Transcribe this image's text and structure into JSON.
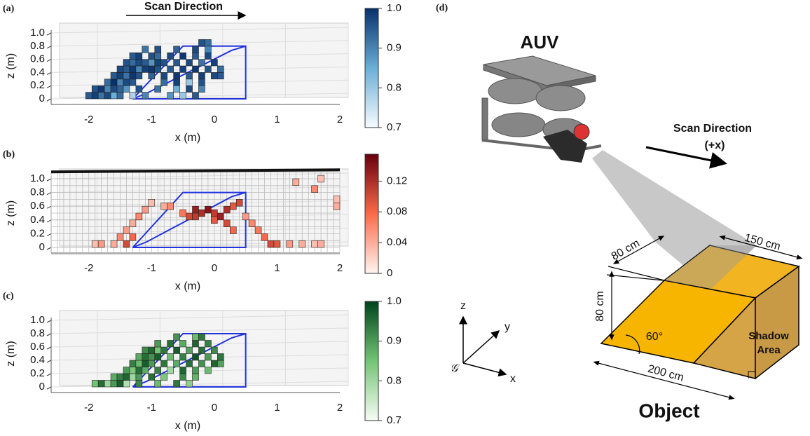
{
  "chart_data": [
    {
      "type": "voxel",
      "label": "(a)",
      "xlabel": "x (m)",
      "ylabel": "z (m)",
      "annotation": "Scan Direction",
      "xlim": [
        -2.6,
        2
      ],
      "xticks": [
        -2,
        -1,
        0,
        1,
        2
      ],
      "ylim": [
        0,
        1
      ],
      "yticks": [
        0,
        0.2,
        0.4,
        0.6,
        0.8,
        {
          "value": 1,
          "label": "1.0"
        }
      ],
      "colormap": [
        "#f7fbff",
        "#6baed6",
        "#08306b"
      ],
      "colorbar_lim": [
        0.7,
        1
      ],
      "colorbar_ticks": [
        0.7,
        0.8,
        0.9,
        {
          "value": 1,
          "label": "1.0"
        }
      ],
      "voxels": [
        [
          -2,
          0.05,
          0.95
        ],
        [
          -1.9,
          0.05,
          0.98
        ],
        [
          -1.8,
          0.05,
          0.92
        ],
        [
          -1.7,
          0.05,
          0.97
        ],
        [
          -1.6,
          0.05,
          0.85
        ],
        [
          -1.5,
          0.05,
          0.93
        ],
        [
          -1.3,
          0.05,
          0.78
        ],
        [
          -1.1,
          0.05,
          0.9
        ],
        [
          -0.7,
          0.05,
          0.88
        ],
        [
          -0.5,
          0.05,
          0.8
        ],
        [
          -0.3,
          0.05,
          0.95
        ],
        [
          -1.9,
          0.15,
          0.96
        ],
        [
          -1.8,
          0.15,
          0.99
        ],
        [
          -1.7,
          0.15,
          0.9
        ],
        [
          -1.6,
          0.15,
          0.97
        ],
        [
          -1.5,
          0.15,
          0.94
        ],
        [
          -1.4,
          0.15,
          0.88
        ],
        [
          -1.2,
          0.15,
          0.96
        ],
        [
          -0.9,
          0.15,
          0.92
        ],
        [
          -0.6,
          0.15,
          0.85
        ],
        [
          -0.4,
          0.15,
          0.97
        ],
        [
          -0.2,
          0.15,
          0.9
        ],
        [
          -1.7,
          0.25,
          0.93
        ],
        [
          -1.6,
          0.25,
          1
        ],
        [
          -1.5,
          0.25,
          0.9
        ],
        [
          -1.4,
          0.25,
          0.97
        ],
        [
          -1.3,
          0.25,
          0.95
        ],
        [
          -0.8,
          0.25,
          0.93
        ],
        [
          -0.6,
          0.25,
          0.98
        ],
        [
          -0.4,
          0.25,
          0.8
        ],
        [
          -0.2,
          0.25,
          0.96
        ],
        [
          -1.6,
          0.35,
          0.95
        ],
        [
          -1.5,
          0.35,
          0.98
        ],
        [
          -1.4,
          0.35,
          0.92
        ],
        [
          -1.3,
          0.35,
          0.99
        ],
        [
          -1.2,
          0.35,
          0.96
        ],
        [
          -1,
          0.35,
          0.94
        ],
        [
          -0.8,
          0.35,
          0.97
        ],
        [
          -0.6,
          0.35,
          0.99
        ],
        [
          -0.4,
          0.35,
          0.95
        ],
        [
          -0.2,
          0.35,
          0.98
        ],
        [
          0,
          0.35,
          0.97
        ],
        [
          0.1,
          0.35,
          0.95
        ],
        [
          -1.5,
          0.45,
          0.97
        ],
        [
          -1.4,
          0.45,
          0.95
        ],
        [
          -1.3,
          0.45,
          0.99
        ],
        [
          -1.2,
          0.45,
          0.9
        ],
        [
          -1.1,
          0.45,
          0.98
        ],
        [
          -1,
          0.45,
          0.99
        ],
        [
          -0.9,
          0.45,
          0.96
        ],
        [
          -0.7,
          0.45,
          0.95
        ],
        [
          -0.5,
          0.45,
          0.98
        ],
        [
          -0.3,
          0.45,
          0.99
        ],
        [
          -0.1,
          0.45,
          0.96
        ],
        [
          0.1,
          0.45,
          0.93
        ],
        [
          -1.4,
          0.55,
          0.96
        ],
        [
          -1.3,
          0.55,
          0.93
        ],
        [
          -1.2,
          0.55,
          0.97
        ],
        [
          -1.1,
          0.55,
          0.95
        ],
        [
          -1,
          0.55,
          0.88
        ],
        [
          -0.9,
          0.55,
          0.98
        ],
        [
          -0.8,
          0.55,
          0.96
        ],
        [
          -0.6,
          0.55,
          0.95
        ],
        [
          -0.4,
          0.55,
          0.97
        ],
        [
          -0.2,
          0.55,
          0.92
        ],
        [
          0,
          0.55,
          0.98
        ],
        [
          -1.3,
          0.65,
          0.95
        ],
        [
          -1.2,
          0.65,
          0.98
        ],
        [
          -1,
          0.65,
          0.96
        ],
        [
          -0.9,
          0.65,
          0.93
        ],
        [
          -0.7,
          0.65,
          0.97
        ],
        [
          -0.5,
          0.65,
          0.99
        ],
        [
          -0.3,
          0.65,
          0.95
        ],
        [
          -0.1,
          0.65,
          0.97
        ],
        [
          -1.1,
          0.75,
          0.92
        ],
        [
          -0.9,
          0.75,
          0.96
        ],
        [
          -0.6,
          0.75,
          0.94
        ],
        [
          -0.3,
          0.75,
          0.97
        ],
        [
          -0.1,
          0.75,
          0.9
        ],
        [
          -0.2,
          0.85,
          0.96
        ],
        [
          -0.1,
          0.85,
          0.93
        ]
      ]
    },
    {
      "type": "voxel",
      "label": "(b)",
      "xlabel": "x (m)",
      "ylabel": "z (m)",
      "xlim": [
        -2.6,
        2
      ],
      "xticks": [
        -2,
        -1,
        0,
        1,
        2
      ],
      "ylim": [
        0,
        1
      ],
      "yticks": [
        0,
        0.2,
        0.4,
        0.6,
        0.8,
        {
          "value": 1,
          "label": "1.0"
        }
      ],
      "colormap": [
        "#fff5f0",
        "#fb6a4a",
        "#67000d"
      ],
      "colorbar_lim": [
        0,
        0.155
      ],
      "colorbar_ticks": [
        0,
        0.04,
        0.08,
        0.12
      ],
      "voxels": [
        [
          -1.9,
          0.05,
          0.03
        ],
        [
          -1.8,
          0.05,
          0.05
        ],
        [
          -1.6,
          0.05,
          0.04
        ],
        [
          -1.5,
          0.15,
          0.06
        ],
        [
          -1.4,
          0.05,
          0.1
        ],
        [
          -1.3,
          0.15,
          0.08
        ],
        [
          -1.4,
          0.25,
          0.05
        ],
        [
          -1.3,
          0.35,
          0.04
        ],
        [
          -1.2,
          0.45,
          0.06
        ],
        [
          -1.1,
          0.55,
          0.05
        ],
        [
          -1,
          0.65,
          0.03
        ],
        [
          -0.8,
          0.6,
          0.04
        ],
        [
          -0.7,
          0.6,
          0.06
        ],
        [
          -0.4,
          0.45,
          0.1
        ],
        [
          -0.3,
          0.55,
          0.13
        ],
        [
          -0.2,
          0.5,
          0.12
        ],
        [
          -0.1,
          0.55,
          0.14
        ],
        [
          0,
          0.5,
          0.11
        ],
        [
          0.1,
          0.45,
          0.13
        ],
        [
          0.2,
          0.55,
          0.12
        ],
        [
          0.3,
          0.6,
          0.09
        ],
        [
          0.4,
          0.65,
          0.1
        ],
        [
          -0.3,
          0.45,
          0.11
        ],
        [
          0,
          0.4,
          0.09
        ],
        [
          0.2,
          0.35,
          0.1
        ],
        [
          0.3,
          0.25,
          0.08
        ],
        [
          -0.5,
          0.5,
          0.07
        ],
        [
          0.5,
          0.45,
          0.05
        ],
        [
          0.6,
          0.35,
          0.06
        ],
        [
          0.7,
          0.25,
          0.07
        ],
        [
          0.8,
          0.15,
          0.08
        ],
        [
          0.9,
          0.05,
          0.1
        ],
        [
          1,
          0.05,
          0.09
        ],
        [
          1.2,
          0.05,
          0.05
        ],
        [
          1.4,
          0.05,
          0.04
        ],
        [
          1.6,
          0.05,
          0.03
        ],
        [
          1.7,
          0.05,
          0.04
        ],
        [
          1.3,
          0.95,
          0.04
        ],
        [
          1.6,
          0.85,
          0.06
        ],
        [
          1.7,
          1,
          0.03
        ],
        [
          1.95,
          0.7,
          0.03
        ],
        [
          1.95,
          0.6,
          0.04
        ]
      ]
    },
    {
      "type": "voxel",
      "label": "(c)",
      "xlabel": "x (m)",
      "ylabel": "z (m)",
      "xlim": [
        -2.6,
        2
      ],
      "xticks": [
        -2,
        -1,
        0,
        1,
        2
      ],
      "ylim": [
        0,
        1
      ],
      "yticks": [
        0,
        0.2,
        0.4,
        0.6,
        0.8,
        {
          "value": 1,
          "label": "1.0"
        }
      ],
      "colormap": [
        "#f7fcf5",
        "#74c476",
        "#00441b"
      ],
      "colorbar_lim": [
        0.7,
        1
      ],
      "colorbar_ticks": [
        0.7,
        0.8,
        0.9,
        {
          "value": 1,
          "label": "1.0"
        }
      ],
      "voxels": [
        [
          -1.9,
          0.05,
          0.85
        ],
        [
          -1.8,
          0.05,
          0.95
        ],
        [
          -1.7,
          0.05,
          0.8
        ],
        [
          -1.6,
          0.05,
          0.9
        ],
        [
          -1.5,
          0.05,
          0.97
        ],
        [
          -1.4,
          0.05,
          0.78
        ],
        [
          -1.2,
          0.05,
          0.92
        ],
        [
          -0.9,
          0.05,
          0.86
        ],
        [
          -0.6,
          0.05,
          0.94
        ],
        [
          -0.4,
          0.05,
          0.82
        ],
        [
          -1.6,
          0.15,
          0.88
        ],
        [
          -1.5,
          0.15,
          0.93
        ],
        [
          -1.4,
          0.15,
          0.96
        ],
        [
          -1.3,
          0.15,
          0.8
        ],
        [
          -1.2,
          0.15,
          0.9
        ],
        [
          -1,
          0.15,
          0.95
        ],
        [
          -0.8,
          0.15,
          0.84
        ],
        [
          -0.5,
          0.15,
          0.92
        ],
        [
          -0.3,
          0.15,
          0.87
        ],
        [
          -1.4,
          0.25,
          0.9
        ],
        [
          -1.3,
          0.25,
          0.84
        ],
        [
          -1.2,
          0.25,
          0.95
        ],
        [
          -1.1,
          0.25,
          0.88
        ],
        [
          -0.9,
          0.25,
          0.93
        ],
        [
          -0.7,
          0.25,
          0.8
        ],
        [
          -0.5,
          0.25,
          0.96
        ],
        [
          -0.3,
          0.25,
          0.9
        ],
        [
          -0.1,
          0.25,
          0.86
        ],
        [
          -1.3,
          0.35,
          0.93
        ],
        [
          -1.2,
          0.35,
          0.86
        ],
        [
          -1.1,
          0.35,
          0.97
        ],
        [
          -1,
          0.35,
          0.9
        ],
        [
          -0.8,
          0.35,
          0.94
        ],
        [
          -0.6,
          0.35,
          0.88
        ],
        [
          -0.4,
          0.35,
          0.95
        ],
        [
          -0.2,
          0.35,
          0.91
        ],
        [
          0,
          0.35,
          0.96
        ],
        [
          0.1,
          0.35,
          0.89
        ],
        [
          -1.2,
          0.45,
          0.88
        ],
        [
          -1.1,
          0.45,
          0.95
        ],
        [
          -1,
          0.45,
          0.91
        ],
        [
          -0.9,
          0.45,
          0.97
        ],
        [
          -0.7,
          0.45,
          0.86
        ],
        [
          -0.5,
          0.45,
          0.93
        ],
        [
          -0.3,
          0.45,
          0.98
        ],
        [
          -0.1,
          0.45,
          0.9
        ],
        [
          0.1,
          0.45,
          0.94
        ],
        [
          -1.1,
          0.55,
          0.92
        ],
        [
          -1,
          0.55,
          0.96
        ],
        [
          -0.9,
          0.55,
          0.85
        ],
        [
          -0.8,
          0.55,
          0.94
        ],
        [
          -0.6,
          0.55,
          0.97
        ],
        [
          -0.4,
          0.55,
          0.89
        ],
        [
          -0.2,
          0.55,
          0.95
        ],
        [
          0,
          0.55,
          0.92
        ],
        [
          -0.9,
          0.65,
          0.9
        ],
        [
          -0.7,
          0.65,
          0.95
        ],
        [
          -0.5,
          0.65,
          0.88
        ],
        [
          -0.3,
          0.65,
          0.96
        ],
        [
          -0.1,
          0.65,
          0.93
        ],
        [
          -0.6,
          0.75,
          0.91
        ],
        [
          -0.3,
          0.75,
          0.86
        ],
        [
          -0.2,
          0.75,
          0.94
        ]
      ]
    }
  ],
  "diagram": {
    "label": "(d)",
    "vehicle": "AUV",
    "scan_direction": "Scan Direction",
    "scan_axis": "(+x)",
    "dim_depth": "80 cm",
    "dim_length": "150 cm",
    "dim_height": "80 cm",
    "angle": "60°",
    "shadow_label": [
      "Shadow",
      "Area"
    ],
    "dim_width": "200 cm",
    "object_label": "Object",
    "axes": {
      "z": "z",
      "y": "y",
      "x": "x",
      "frame": "𝒢"
    }
  }
}
